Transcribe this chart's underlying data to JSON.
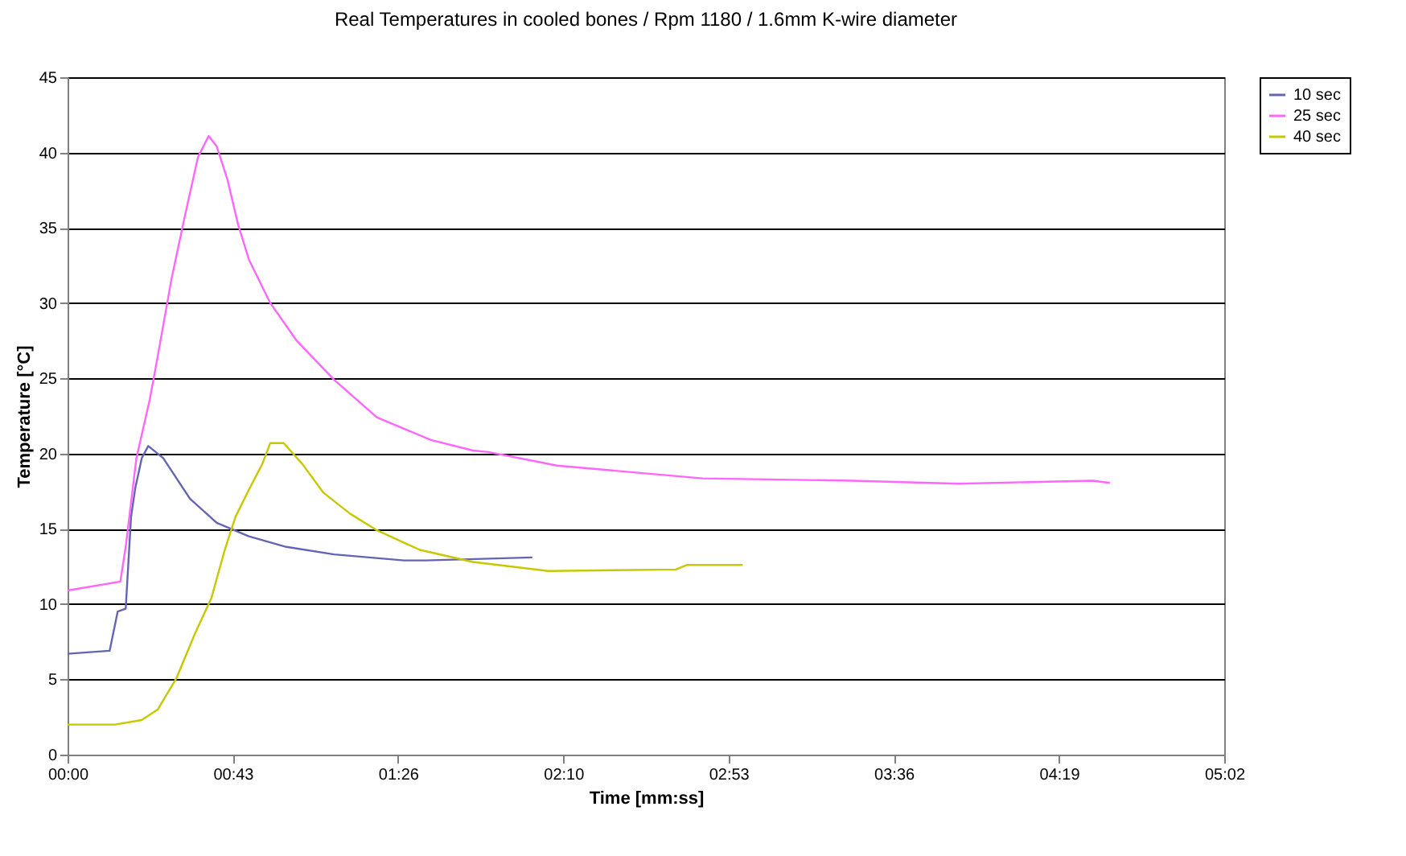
{
  "chart_data": {
    "type": "line",
    "title": "Real Temperatures in cooled bones / Rpm 1180 / 1.6mm K-wire diameter",
    "xlabel": "Time [mm:ss]",
    "ylabel": "Temperature [°C]",
    "xlim": [
      0,
      302.4
    ],
    "xticks": [
      {
        "value": 0,
        "label": "00:00"
      },
      {
        "value": 43.2,
        "label": "00:43"
      },
      {
        "value": 86.4,
        "label": "01:26"
      },
      {
        "value": 129.6,
        "label": "02:10"
      },
      {
        "value": 172.8,
        "label": "02:53"
      },
      {
        "value": 216,
        "label": "03:36"
      },
      {
        "value": 259.2,
        "label": "04:19"
      },
      {
        "value": 302.4,
        "label": "05:02"
      }
    ],
    "ylim": [
      0,
      45
    ],
    "yticks": [
      0,
      5,
      10,
      15,
      20,
      25,
      30,
      35,
      40,
      45
    ],
    "grid": "y",
    "legend": "right",
    "marker": "none",
    "series": [
      {
        "name": "10 sec",
        "color": "#6464b4",
        "x": [
          0,
          11,
          13.1,
          15.2,
          16.6,
          17.7,
          19.4,
          21.1,
          25,
          32,
          39,
          47.4,
          57.2,
          69.7,
          88,
          93.5,
          121.5
        ],
        "values": [
          6.7,
          6.9,
          9.5,
          9.7,
          15.8,
          17.7,
          19.7,
          20.5,
          19.7,
          17,
          15.4,
          14.5,
          13.8,
          13.3,
          12.9,
          12.9,
          13.1
        ]
      },
      {
        "name": "25 sec",
        "color": "#ff66ff",
        "x": [
          0,
          13.8,
          15.2,
          18,
          21.5,
          23.6,
          27.1,
          30.6,
          34.1,
          36.9,
          39,
          41.8,
          44.6,
          47.4,
          53,
          59.9,
          69.7,
          80.9,
          95,
          106,
          110,
          128,
          166,
          205,
          233,
          268,
          272.5
        ],
        "values": [
          10.9,
          11.5,
          13.8,
          19.7,
          23.6,
          26.5,
          31.5,
          35.7,
          39.7,
          41.1,
          40.4,
          38.2,
          35.2,
          32.9,
          30,
          27.5,
          24.9,
          22.4,
          20.9,
          20.2,
          20.1,
          19.2,
          18.35,
          18.2,
          18,
          18.2,
          18.05
        ]
      },
      {
        "name": "40 sec",
        "color": "#c8c800",
        "x": [
          0,
          12.4,
          19.4,
          23.6,
          28.5,
          33.4,
          37.6,
          41.1,
          43.9,
          47.4,
          50.9,
          53,
          56.5,
          61.4,
          66.9,
          73.9,
          80.9,
          92.1,
          106,
          125.7,
          159,
          162,
          176.5
        ],
        "values": [
          2,
          2,
          2.3,
          3,
          5.1,
          8.1,
          10.4,
          13.6,
          15.8,
          17.6,
          19.3,
          20.7,
          20.7,
          19.3,
          17.4,
          16,
          14.9,
          13.6,
          12.8,
          12.2,
          12.3,
          12.6,
          12.6
        ]
      }
    ]
  }
}
